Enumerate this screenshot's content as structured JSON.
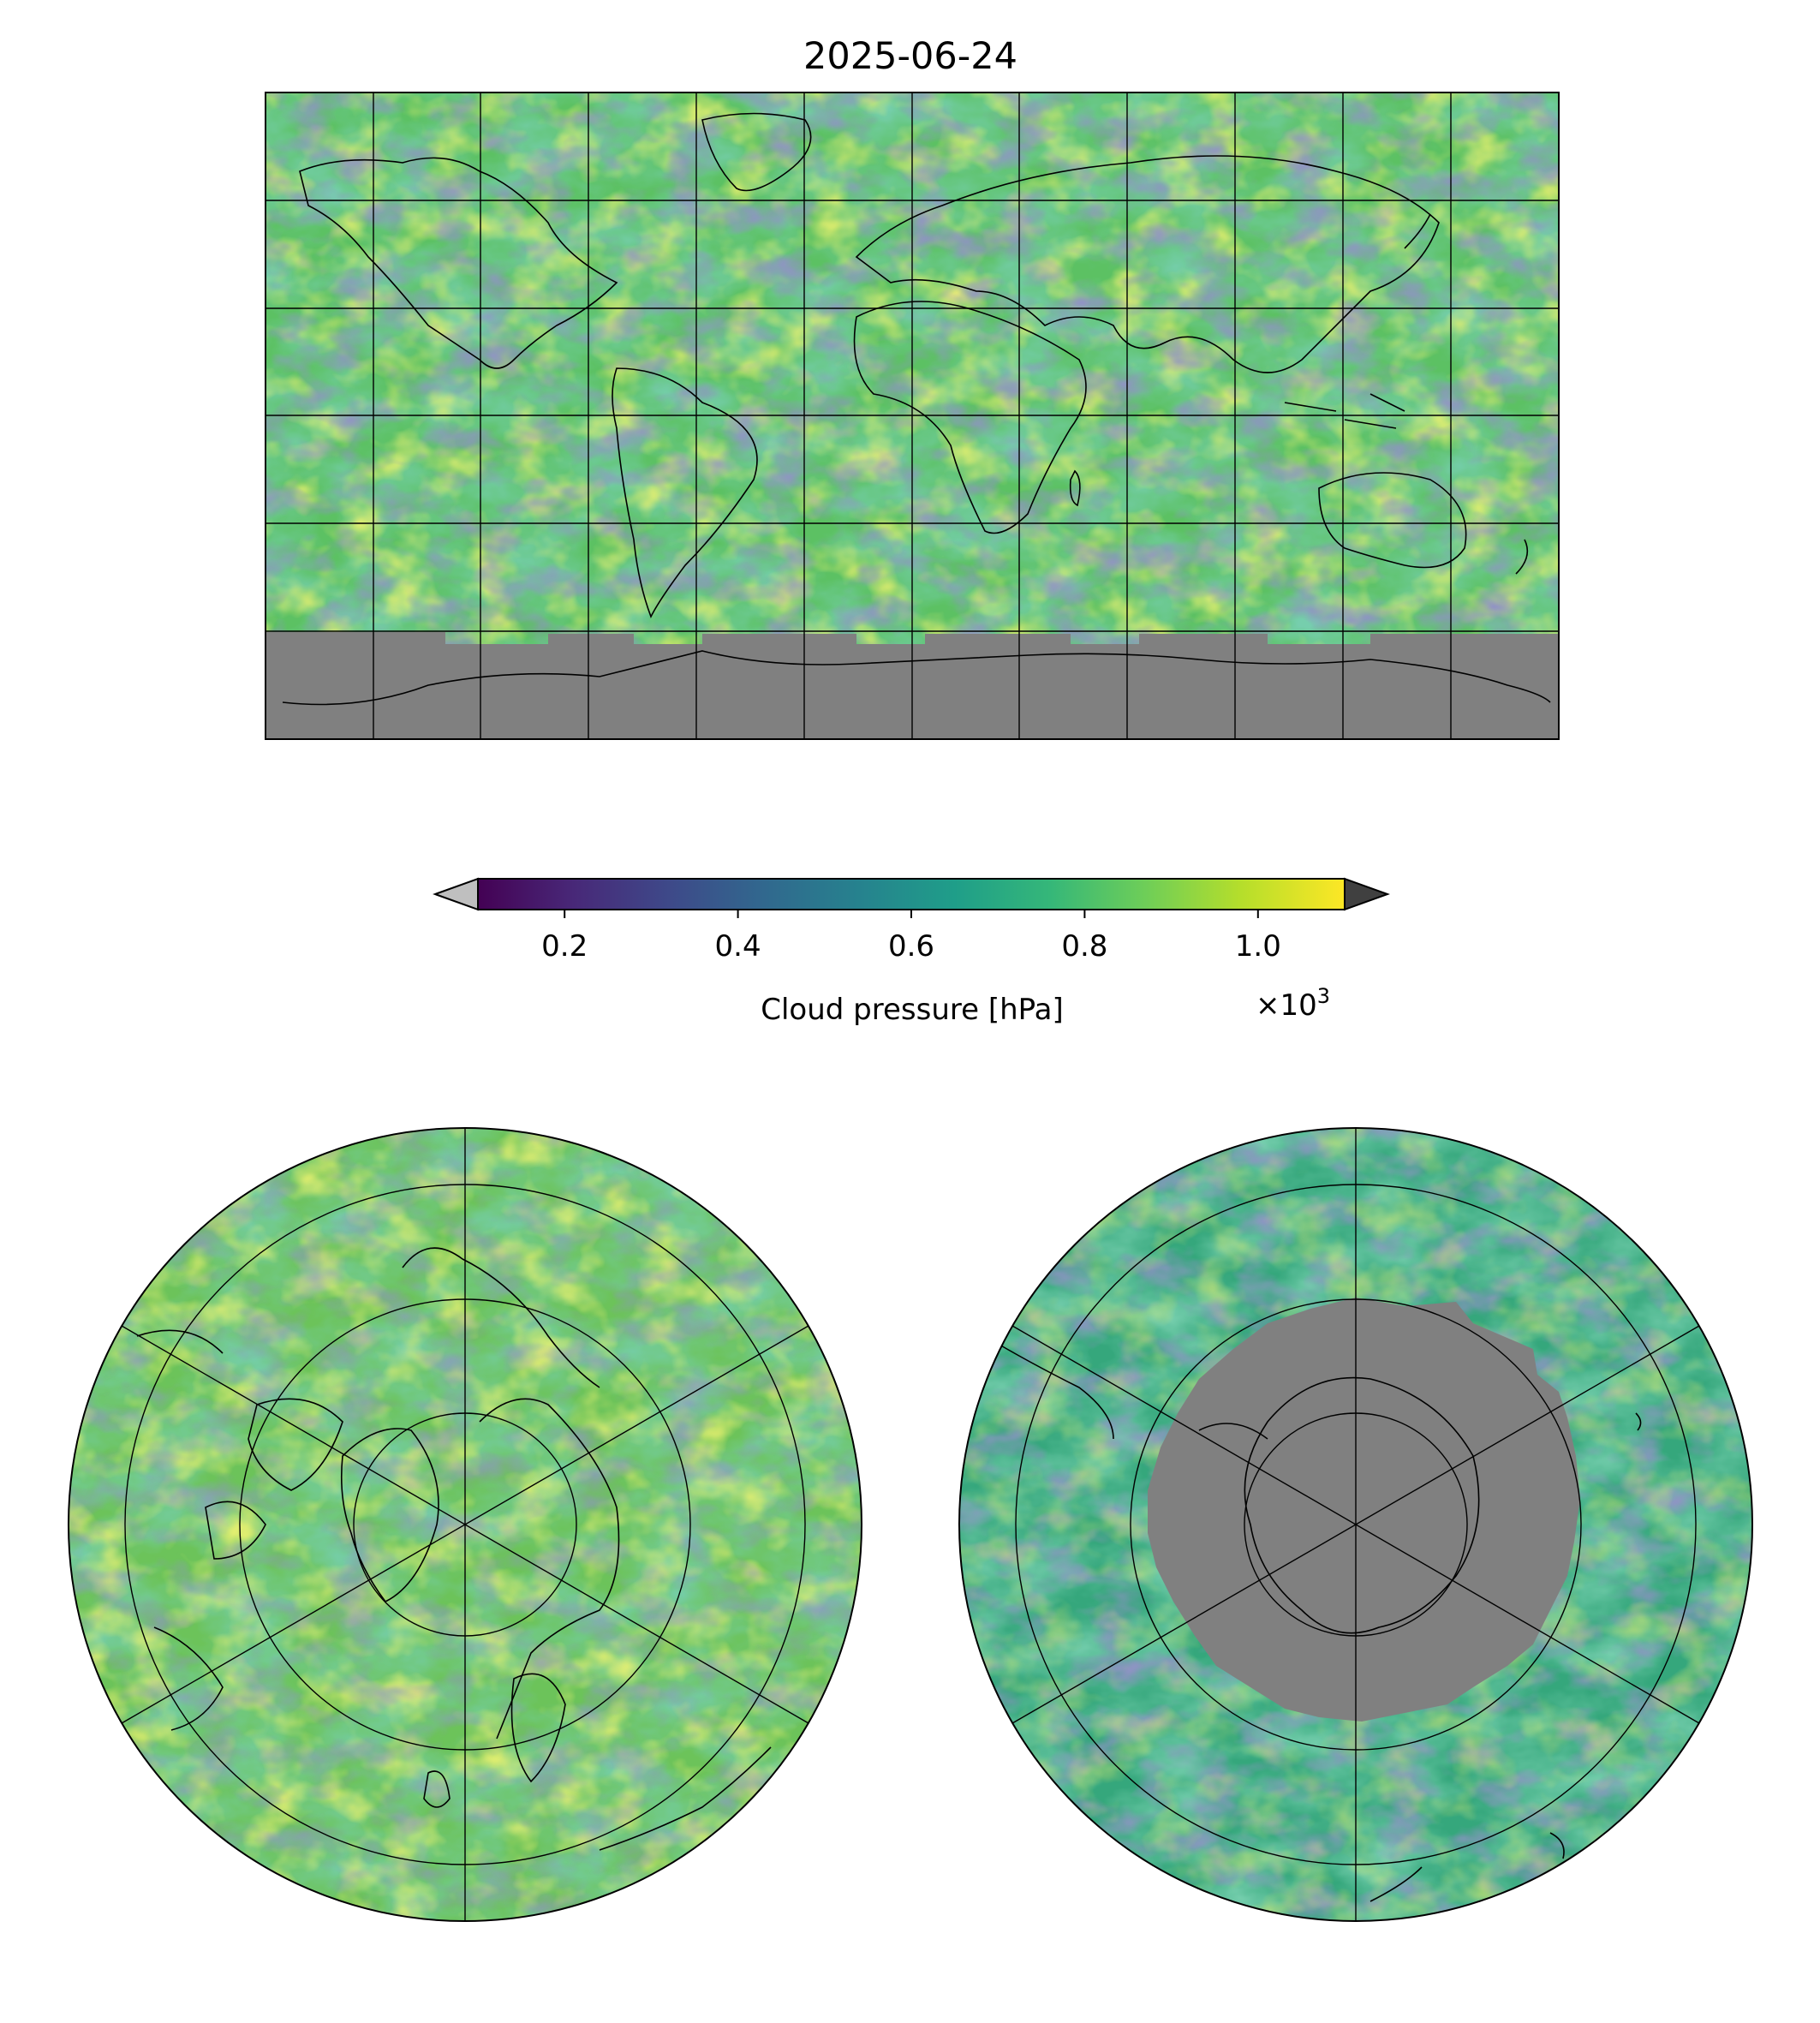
{
  "figure": {
    "title": "2025-06-24"
  },
  "colorbar": {
    "label": "Cloud pressure [hPa]",
    "multiplier_base": "×10",
    "multiplier_exponent": "3",
    "ticks": [
      "0.2",
      "0.4",
      "0.6",
      "0.8",
      "1.0"
    ],
    "range": [
      0.1,
      1.1
    ],
    "tick_values": [
      0.2,
      0.4,
      0.6,
      0.8,
      1.0
    ],
    "colormap": "viridis",
    "under_color": "#bfbfbf",
    "over_color": "#404040"
  },
  "maps": [
    {
      "id": "global",
      "projection": "equirectangular",
      "no_data_region": "south of ~60°S (Antarctica)",
      "no_data_color": "#808080"
    },
    {
      "id": "north-pole",
      "projection": "north polar stereographic"
    },
    {
      "id": "south-pole",
      "projection": "south polar stereographic",
      "no_data_region": "Antarctic interior",
      "no_data_color": "#808080"
    }
  ],
  "colors": {
    "viridis_stops": [
      "#440154",
      "#482878",
      "#3e4989",
      "#31688e",
      "#26828e",
      "#1f9e89",
      "#35b779",
      "#6ece58",
      "#b5de2b",
      "#fde725"
    ],
    "nodata": "#808080",
    "coast": "#000000"
  }
}
